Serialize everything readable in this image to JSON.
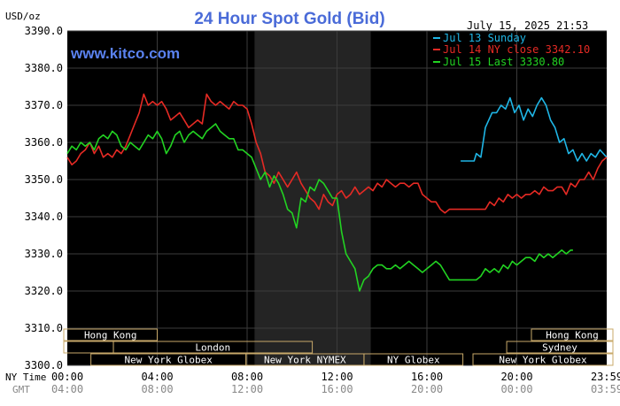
{
  "chart_data": {
    "type": "line",
    "title": "24 Hour Spot Gold (Bid)",
    "ylabel": "USD/oz",
    "date_label": "July 15, 2025 21:53",
    "watermark": "www.kitco.com",
    "ylim": [
      3300,
      3390
    ],
    "y_ticks": [
      "3300.0",
      "3310.0",
      "3320.0",
      "3330.0",
      "3340.0",
      "3350.0",
      "3360.0",
      "3370.0",
      "3380.0",
      "3390.0"
    ],
    "x_hours": [
      0,
      24
    ],
    "x_row_labels": {
      "ny": "NY Time",
      "gmt": "GMT"
    },
    "x_ticks": [
      {
        "hour": 0,
        "ny": "00:00",
        "gmt": "04:00"
      },
      {
        "hour": 4,
        "ny": "04:00",
        "gmt": "08:00"
      },
      {
        "hour": 8,
        "ny": "08:00",
        "gmt": "12:00"
      },
      {
        "hour": 12,
        "ny": "12:00",
        "gmt": "16:00"
      },
      {
        "hour": 16,
        "ny": "16:00",
        "gmt": "20:00"
      },
      {
        "hour": 20,
        "ny": "20:00",
        "gmt": "00:00"
      },
      {
        "hour": 24,
        "ny": "23:59",
        "gmt": "03:59"
      }
    ],
    "shaded_session": [
      8.33,
      13.5
    ],
    "grid": true,
    "legend_position": "top-right",
    "series": [
      {
        "name": "Jul 13 Sunday",
        "color": "#1fb6e6",
        "points": [
          [
            17.5,
            3355
          ],
          [
            18.1,
            3355
          ],
          [
            18.2,
            3357
          ],
          [
            18.4,
            3356
          ],
          [
            18.6,
            3364
          ],
          [
            18.9,
            3368
          ],
          [
            19.1,
            3368
          ],
          [
            19.3,
            3370
          ],
          [
            19.5,
            3369
          ],
          [
            19.7,
            3372
          ],
          [
            19.9,
            3368
          ],
          [
            20.1,
            3370
          ],
          [
            20.3,
            3366
          ],
          [
            20.5,
            3369
          ],
          [
            20.7,
            3367
          ],
          [
            20.9,
            3370
          ],
          [
            21.1,
            3372
          ],
          [
            21.3,
            3370
          ],
          [
            21.5,
            3366
          ],
          [
            21.7,
            3364
          ],
          [
            21.9,
            3360
          ],
          [
            22.1,
            3361
          ],
          [
            22.3,
            3357
          ],
          [
            22.5,
            3358
          ],
          [
            22.7,
            3355
          ],
          [
            22.9,
            3357
          ],
          [
            23.1,
            3355
          ],
          [
            23.3,
            3357
          ],
          [
            23.5,
            3356
          ],
          [
            23.7,
            3358
          ],
          [
            23.85,
            3357
          ],
          [
            24.0,
            3356
          ]
        ]
      },
      {
        "name": "Jul 14 NY close 3342.10",
        "color": "#e52a24",
        "points": [
          [
            0.0,
            3356
          ],
          [
            0.2,
            3354
          ],
          [
            0.4,
            3355
          ],
          [
            0.6,
            3357
          ],
          [
            0.8,
            3358
          ],
          [
            1.0,
            3360
          ],
          [
            1.2,
            3357
          ],
          [
            1.4,
            3359
          ],
          [
            1.6,
            3356
          ],
          [
            1.8,
            3357
          ],
          [
            2.0,
            3356
          ],
          [
            2.2,
            3358
          ],
          [
            2.4,
            3357
          ],
          [
            2.6,
            3359
          ],
          [
            2.8,
            3362
          ],
          [
            3.0,
            3365
          ],
          [
            3.2,
            3368
          ],
          [
            3.4,
            3373
          ],
          [
            3.6,
            3370
          ],
          [
            3.8,
            3371
          ],
          [
            4.0,
            3370
          ],
          [
            4.2,
            3371
          ],
          [
            4.4,
            3369
          ],
          [
            4.6,
            3366
          ],
          [
            4.8,
            3367
          ],
          [
            5.0,
            3368
          ],
          [
            5.2,
            3366
          ],
          [
            5.4,
            3364
          ],
          [
            5.6,
            3365
          ],
          [
            5.8,
            3366
          ],
          [
            6.0,
            3365
          ],
          [
            6.2,
            3373
          ],
          [
            6.4,
            3371
          ],
          [
            6.6,
            3370
          ],
          [
            6.8,
            3371
          ],
          [
            7.0,
            3370
          ],
          [
            7.2,
            3369
          ],
          [
            7.4,
            3371
          ],
          [
            7.6,
            3370
          ],
          [
            7.8,
            3370
          ],
          [
            8.0,
            3369
          ],
          [
            8.2,
            3365
          ],
          [
            8.4,
            3360
          ],
          [
            8.6,
            3357
          ],
          [
            8.8,
            3352
          ],
          [
            9.0,
            3351
          ],
          [
            9.2,
            3349
          ],
          [
            9.4,
            3352
          ],
          [
            9.6,
            3350
          ],
          [
            9.8,
            3348
          ],
          [
            10.0,
            3350
          ],
          [
            10.2,
            3352
          ],
          [
            10.4,
            3349
          ],
          [
            10.6,
            3347
          ],
          [
            10.8,
            3345
          ],
          [
            11.0,
            3344
          ],
          [
            11.2,
            3342
          ],
          [
            11.4,
            3346
          ],
          [
            11.6,
            3344
          ],
          [
            11.8,
            3343
          ],
          [
            12.0,
            3346
          ],
          [
            12.2,
            3347
          ],
          [
            12.4,
            3345
          ],
          [
            12.6,
            3346
          ],
          [
            12.8,
            3348
          ],
          [
            13.0,
            3346
          ],
          [
            13.2,
            3347
          ],
          [
            13.4,
            3348
          ],
          [
            13.6,
            3347
          ],
          [
            13.8,
            3349
          ],
          [
            14.0,
            3348
          ],
          [
            14.2,
            3350
          ],
          [
            14.4,
            3349
          ],
          [
            14.6,
            3348
          ],
          [
            14.8,
            3349
          ],
          [
            15.0,
            3349
          ],
          [
            15.2,
            3348
          ],
          [
            15.4,
            3349
          ],
          [
            15.6,
            3349
          ],
          [
            15.8,
            3346
          ],
          [
            16.0,
            3345
          ],
          [
            16.2,
            3344
          ],
          [
            16.4,
            3344
          ],
          [
            16.6,
            3342
          ],
          [
            16.8,
            3341
          ],
          [
            17.0,
            3342
          ],
          [
            17.2,
            3342
          ],
          [
            17.4,
            3342
          ],
          [
            17.6,
            3342
          ],
          [
            17.8,
            3342
          ],
          [
            18.0,
            3342
          ],
          [
            18.2,
            3342
          ],
          [
            18.4,
            3342
          ],
          [
            18.6,
            3342
          ],
          [
            18.8,
            3344
          ],
          [
            19.0,
            3343
          ],
          [
            19.2,
            3345
          ],
          [
            19.4,
            3344
          ],
          [
            19.6,
            3346
          ],
          [
            19.8,
            3345
          ],
          [
            20.0,
            3346
          ],
          [
            20.2,
            3345
          ],
          [
            20.4,
            3346
          ],
          [
            20.6,
            3346
          ],
          [
            20.8,
            3347
          ],
          [
            21.0,
            3346
          ],
          [
            21.2,
            3348
          ],
          [
            21.4,
            3347
          ],
          [
            21.6,
            3347
          ],
          [
            21.8,
            3348
          ],
          [
            22.0,
            3348
          ],
          [
            22.2,
            3346
          ],
          [
            22.4,
            3349
          ],
          [
            22.6,
            3348
          ],
          [
            22.8,
            3350
          ],
          [
            23.0,
            3350
          ],
          [
            23.2,
            3352
          ],
          [
            23.4,
            3350
          ],
          [
            23.6,
            3353
          ],
          [
            23.8,
            3355
          ],
          [
            24.0,
            3356
          ]
        ]
      },
      {
        "name": "Jul 15 Last 3330.80",
        "color": "#22d322",
        "points": [
          [
            0.0,
            3357
          ],
          [
            0.2,
            3359
          ],
          [
            0.4,
            3358
          ],
          [
            0.6,
            3360
          ],
          [
            0.8,
            3359
          ],
          [
            1.0,
            3360
          ],
          [
            1.2,
            3358
          ],
          [
            1.4,
            3361
          ],
          [
            1.6,
            3362
          ],
          [
            1.8,
            3361
          ],
          [
            2.0,
            3363
          ],
          [
            2.2,
            3362
          ],
          [
            2.4,
            3359
          ],
          [
            2.6,
            3358
          ],
          [
            2.8,
            3360
          ],
          [
            3.0,
            3359
          ],
          [
            3.2,
            3358
          ],
          [
            3.4,
            3360
          ],
          [
            3.6,
            3362
          ],
          [
            3.8,
            3361
          ],
          [
            4.0,
            3363
          ],
          [
            4.2,
            3361
          ],
          [
            4.4,
            3357
          ],
          [
            4.6,
            3359
          ],
          [
            4.8,
            3362
          ],
          [
            5.0,
            3363
          ],
          [
            5.2,
            3360
          ],
          [
            5.4,
            3362
          ],
          [
            5.6,
            3363
          ],
          [
            5.8,
            3362
          ],
          [
            6.0,
            3361
          ],
          [
            6.2,
            3363
          ],
          [
            6.4,
            3364
          ],
          [
            6.6,
            3365
          ],
          [
            6.8,
            3363
          ],
          [
            7.0,
            3362
          ],
          [
            7.2,
            3361
          ],
          [
            7.4,
            3361
          ],
          [
            7.6,
            3358
          ],
          [
            7.8,
            3358
          ],
          [
            8.0,
            3357
          ],
          [
            8.2,
            3356
          ],
          [
            8.4,
            3353
          ],
          [
            8.6,
            3350
          ],
          [
            8.8,
            3352
          ],
          [
            9.0,
            3348
          ],
          [
            9.2,
            3351
          ],
          [
            9.4,
            3349
          ],
          [
            9.6,
            3346
          ],
          [
            9.8,
            3342
          ],
          [
            10.0,
            3341
          ],
          [
            10.2,
            3337
          ],
          [
            10.4,
            3345
          ],
          [
            10.6,
            3344
          ],
          [
            10.8,
            3348
          ],
          [
            11.0,
            3347
          ],
          [
            11.2,
            3350
          ],
          [
            11.4,
            3349
          ],
          [
            11.6,
            3347
          ],
          [
            11.8,
            3345
          ],
          [
            12.0,
            3345
          ],
          [
            12.2,
            3336
          ],
          [
            12.4,
            3330
          ],
          [
            12.6,
            3328
          ],
          [
            12.8,
            3326
          ],
          [
            13.0,
            3320
          ],
          [
            13.2,
            3323
          ],
          [
            13.4,
            3324
          ],
          [
            13.6,
            3326
          ],
          [
            13.8,
            3327
          ],
          [
            14.0,
            3327
          ],
          [
            14.2,
            3326
          ],
          [
            14.4,
            3326
          ],
          [
            14.6,
            3327
          ],
          [
            14.8,
            3326
          ],
          [
            15.0,
            3327
          ],
          [
            15.2,
            3328
          ],
          [
            15.4,
            3327
          ],
          [
            15.6,
            3326
          ],
          [
            15.8,
            3325
          ],
          [
            16.0,
            3326
          ],
          [
            16.2,
            3327
          ],
          [
            16.4,
            3328
          ],
          [
            16.6,
            3327
          ],
          [
            16.8,
            3325
          ],
          [
            17.0,
            3323
          ],
          [
            17.2,
            3323
          ],
          [
            17.4,
            3323
          ],
          [
            17.6,
            3323
          ],
          [
            17.8,
            3323
          ],
          [
            18.0,
            3323
          ],
          [
            18.2,
            3323
          ],
          [
            18.4,
            3324
          ],
          [
            18.6,
            3326
          ],
          [
            18.8,
            3325
          ],
          [
            19.0,
            3326
          ],
          [
            19.2,
            3325
          ],
          [
            19.4,
            3327
          ],
          [
            19.6,
            3326
          ],
          [
            19.8,
            3328
          ],
          [
            20.0,
            3327
          ],
          [
            20.2,
            3328
          ],
          [
            20.4,
            3329
          ],
          [
            20.6,
            3329
          ],
          [
            20.8,
            3328
          ],
          [
            21.0,
            3330
          ],
          [
            21.2,
            3329
          ],
          [
            21.4,
            3330
          ],
          [
            21.6,
            3329
          ],
          [
            21.8,
            3330
          ],
          [
            22.0,
            3331
          ],
          [
            22.2,
            3330
          ],
          [
            22.4,
            3331
          ],
          [
            22.5,
            3331
          ]
        ]
      }
    ],
    "sessions": [
      {
        "name": "Hong Kong",
        "row": 0,
        "start": -0.45,
        "end": 4.0
      },
      {
        "name": "",
        "row": 1,
        "start": -0.45,
        "end": 2.05
      },
      {
        "name": "London",
        "row": 1,
        "start": 2.05,
        "end": 10.9
      },
      {
        "name": "New York Globex",
        "row": 2,
        "start": 1.05,
        "end": 7.95
      },
      {
        "name": "New York NYMEX",
        "row": 2,
        "start": 7.95,
        "end": 13.2
      },
      {
        "name": "NY Globex",
        "row": 2,
        "start": 13.2,
        "end": 17.6
      },
      {
        "name": "Hong Kong",
        "row": 0,
        "start": 20.65,
        "end": 24.4
      },
      {
        "name": "Sydney",
        "row": 1,
        "start": 19.55,
        "end": 24.4
      },
      {
        "name": "New York Globex",
        "row": 2,
        "start": 18.05,
        "end": 24.4
      }
    ]
  }
}
